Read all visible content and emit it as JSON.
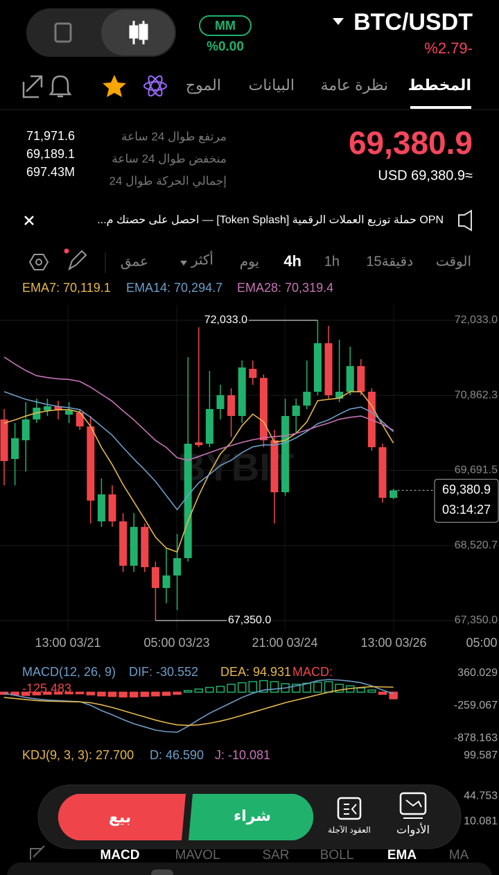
{
  "header": {
    "mode": "MM",
    "mode_change": "%0.00",
    "pair": "BTC/USDT",
    "change": "%2.79-"
  },
  "tabs": [
    "المخطط",
    "نظرة عامة",
    "البيانات",
    "الموج"
  ],
  "price": {
    "last": "69,380.9",
    "usd": "USD 69,380.9≈"
  },
  "stats": {
    "labels": [
      "مرتفع طوال 24 ساعة",
      "منخفض طوال 24 ساعة",
      "إجمالي الحركة طوال 24"
    ],
    "values": [
      "71,971.6",
      "69,189.1",
      "697.43M"
    ]
  },
  "banner": "OPN حملة توزيع العملات الرقمية [Token Splash] — احصل على حصتك م...",
  "intervals": [
    "الوقت",
    "15دقيقة",
    "1h",
    "4h",
    "يوم",
    "أكثر",
    "عمق"
  ],
  "chart": {
    "type": "candlestick",
    "watermark": "BYBIT",
    "ylim": [
      67188,
      72271
    ],
    "yticks": [
      {
        "value": 72033,
        "label": "72,033.0"
      },
      {
        "value": 70862.3,
        "label": "70,862.3"
      },
      {
        "value": 69691.5,
        "label": "69,691.5"
      },
      {
        "value": 68520.7,
        "label": "68,520.7"
      },
      {
        "value": 67350,
        "label": "67,350.0"
      }
    ],
    "xtick_labels": [
      "13:00 03/21",
      "05:00 03/23",
      "21:00 03/24",
      "13:00 03/26",
      "05:00"
    ],
    "open": [
      70487,
      69870,
      70162,
      70487,
      70627,
      70692,
      70562,
      70595,
      70378,
      68897,
      69318,
      68897,
      68205,
      68810,
      68183,
      67858,
      68053,
      68324,
      70130,
      70108,
      70649,
      70865,
      70541,
      71276,
      71135,
      70162,
      69351,
      70541,
      70703,
      70919,
      71676,
      70811,
      70919,
      71319,
      70919,
      70054,
      69264
    ],
    "high": [
      70649,
      70432,
      70757,
      70811,
      70811,
      70778,
      70757,
      70649,
      70541,
      69567,
      69459,
      69026,
      69026,
      68864,
      68270,
      68486,
      68702,
      71460,
      71925,
      71244,
      71027,
      70973,
      71406,
      71406,
      71189,
      70324,
      70811,
      70811,
      71406,
      72033,
      71946,
      71730,
      71622,
      71427,
      70973,
      70108,
      69405
    ],
    "low": [
      69459,
      69459,
      69675,
      70432,
      70541,
      70487,
      70432,
      70324,
      68864,
      68810,
      68810,
      68107,
      68107,
      68107,
      67350,
      67621,
      67513,
      68270,
      70054,
      70054,
      70487,
      70216,
      70432,
      71027,
      70054,
      68864,
      69297,
      70270,
      70649,
      70865,
      70811,
      70757,
      70865,
      70865,
      70000,
      69189,
      69243
    ],
    "close": [
      69838,
      70194,
      70487,
      70670,
      70692,
      70627,
      70627,
      70378,
      69221,
      69318,
      68897,
      68205,
      68810,
      68183,
      67858,
      68053,
      68324,
      70108,
      70086,
      70649,
      70865,
      70541,
      71298,
      71135,
      70162,
      69351,
      70541,
      70703,
      70919,
      71676,
      70865,
      70919,
      71319,
      70919,
      70054,
      69264,
      69381
    ],
    "ema": [
      {
        "label": "EMA7: 70,119.1",
        "color": "#e6b84a",
        "values": [
          70430,
          70480,
          70540,
          70590,
          70620,
          70640,
          70640,
          70600,
          70380,
          70050,
          69780,
          69470,
          69200,
          68930,
          68650,
          68480,
          68420,
          68900,
          69300,
          69650,
          69950,
          70130,
          70390,
          70570,
          70450,
          70130,
          70160,
          70270,
          70450,
          70780,
          70800,
          70820,
          70920,
          70920,
          70700,
          70400,
          70119
        ]
      },
      {
        "label": "EMA14: 70,294.7",
        "color": "#6d9ec9",
        "values": [
          70920,
          70860,
          70800,
          70760,
          70720,
          70690,
          70670,
          70640,
          70520,
          70380,
          70240,
          70050,
          69870,
          69700,
          69520,
          69300,
          69080,
          69300,
          69500,
          69630,
          69770,
          69850,
          69970,
          70060,
          70090,
          70090,
          70120,
          70200,
          70300,
          70420,
          70480,
          70570,
          70650,
          70680,
          70600,
          70450,
          70295
        ]
      },
      {
        "label": "EMA28: 70,319.4",
        "color": "#c774b8",
        "values": [
          71460,
          71350,
          71250,
          71170,
          71140,
          71120,
          71110,
          71080,
          70990,
          70880,
          70770,
          70620,
          70480,
          70320,
          70160,
          70050,
          69890,
          69850,
          69910,
          69970,
          70030,
          70080,
          70130,
          70170,
          70200,
          70220,
          70230,
          70270,
          70320,
          70380,
          70430,
          70490,
          70520,
          70540,
          70480,
          70410,
          70319
        ]
      }
    ],
    "high_label": "72,033.0",
    "low_label": "67,350.0",
    "current_price": "69,380.9",
    "countdown": "03:14:27"
  },
  "macd": {
    "title": "MACD(12, 26, 9)",
    "dif_label": "DIF: -30.552",
    "dea_label": "DEA: 94.931",
    "macd_label": "MACD:",
    "macd_value": "-125.483",
    "ylim": [
      -1010,
      505
    ],
    "yticks": [
      360.029,
      -259.067,
      -878.163
    ],
    "hist": [
      -40,
      -50,
      -60,
      -50,
      -40,
      -35,
      -30,
      -30,
      -50,
      -70,
      -80,
      -90,
      -90,
      -80,
      -70,
      -60,
      -40,
      30,
      60,
      90,
      110,
      150,
      180,
      200,
      220,
      200,
      160,
      150,
      170,
      190,
      200,
      150,
      120,
      80,
      40,
      -40,
      -125
    ],
    "dif": [
      -20,
      -60,
      -100,
      -130,
      -150,
      -160,
      -170,
      -180,
      -250,
      -350,
      -430,
      -520,
      -600,
      -660,
      -720,
      -750,
      -760,
      -650,
      -520,
      -400,
      -300,
      -200,
      -100,
      -20,
      40,
      60,
      80,
      120,
      160,
      220,
      240,
      230,
      210,
      180,
      120,
      40,
      -31
    ],
    "dea": [
      -100,
      -120,
      -140,
      -160,
      -170,
      -175,
      -180,
      -185,
      -200,
      -240,
      -290,
      -350,
      -410,
      -470,
      -530,
      -580,
      -620,
      -630,
      -620,
      -590,
      -550,
      -500,
      -440,
      -380,
      -320,
      -260,
      -200,
      -150,
      -100,
      -50,
      0,
      40,
      70,
      90,
      105,
      100,
      95
    ]
  },
  "kdj": {
    "title": "KDJ(9, 3, 3): 27.700",
    "d_label": "D: 46.590",
    "j_label": "J: -10.081",
    "ylim": [
      0.66,
      109
    ],
    "yticks": [
      99.587,
      44.753,
      10.081
    ]
  },
  "actions": {
    "sell": "بيع",
    "buy": "شراء",
    "futures": "العقود الآجلة",
    "tools": "الأدوات"
  },
  "indicator_tabs": [
    "MACD",
    "MAVOL",
    "SAR",
    "BOLL",
    "EMA",
    "MA"
  ]
}
